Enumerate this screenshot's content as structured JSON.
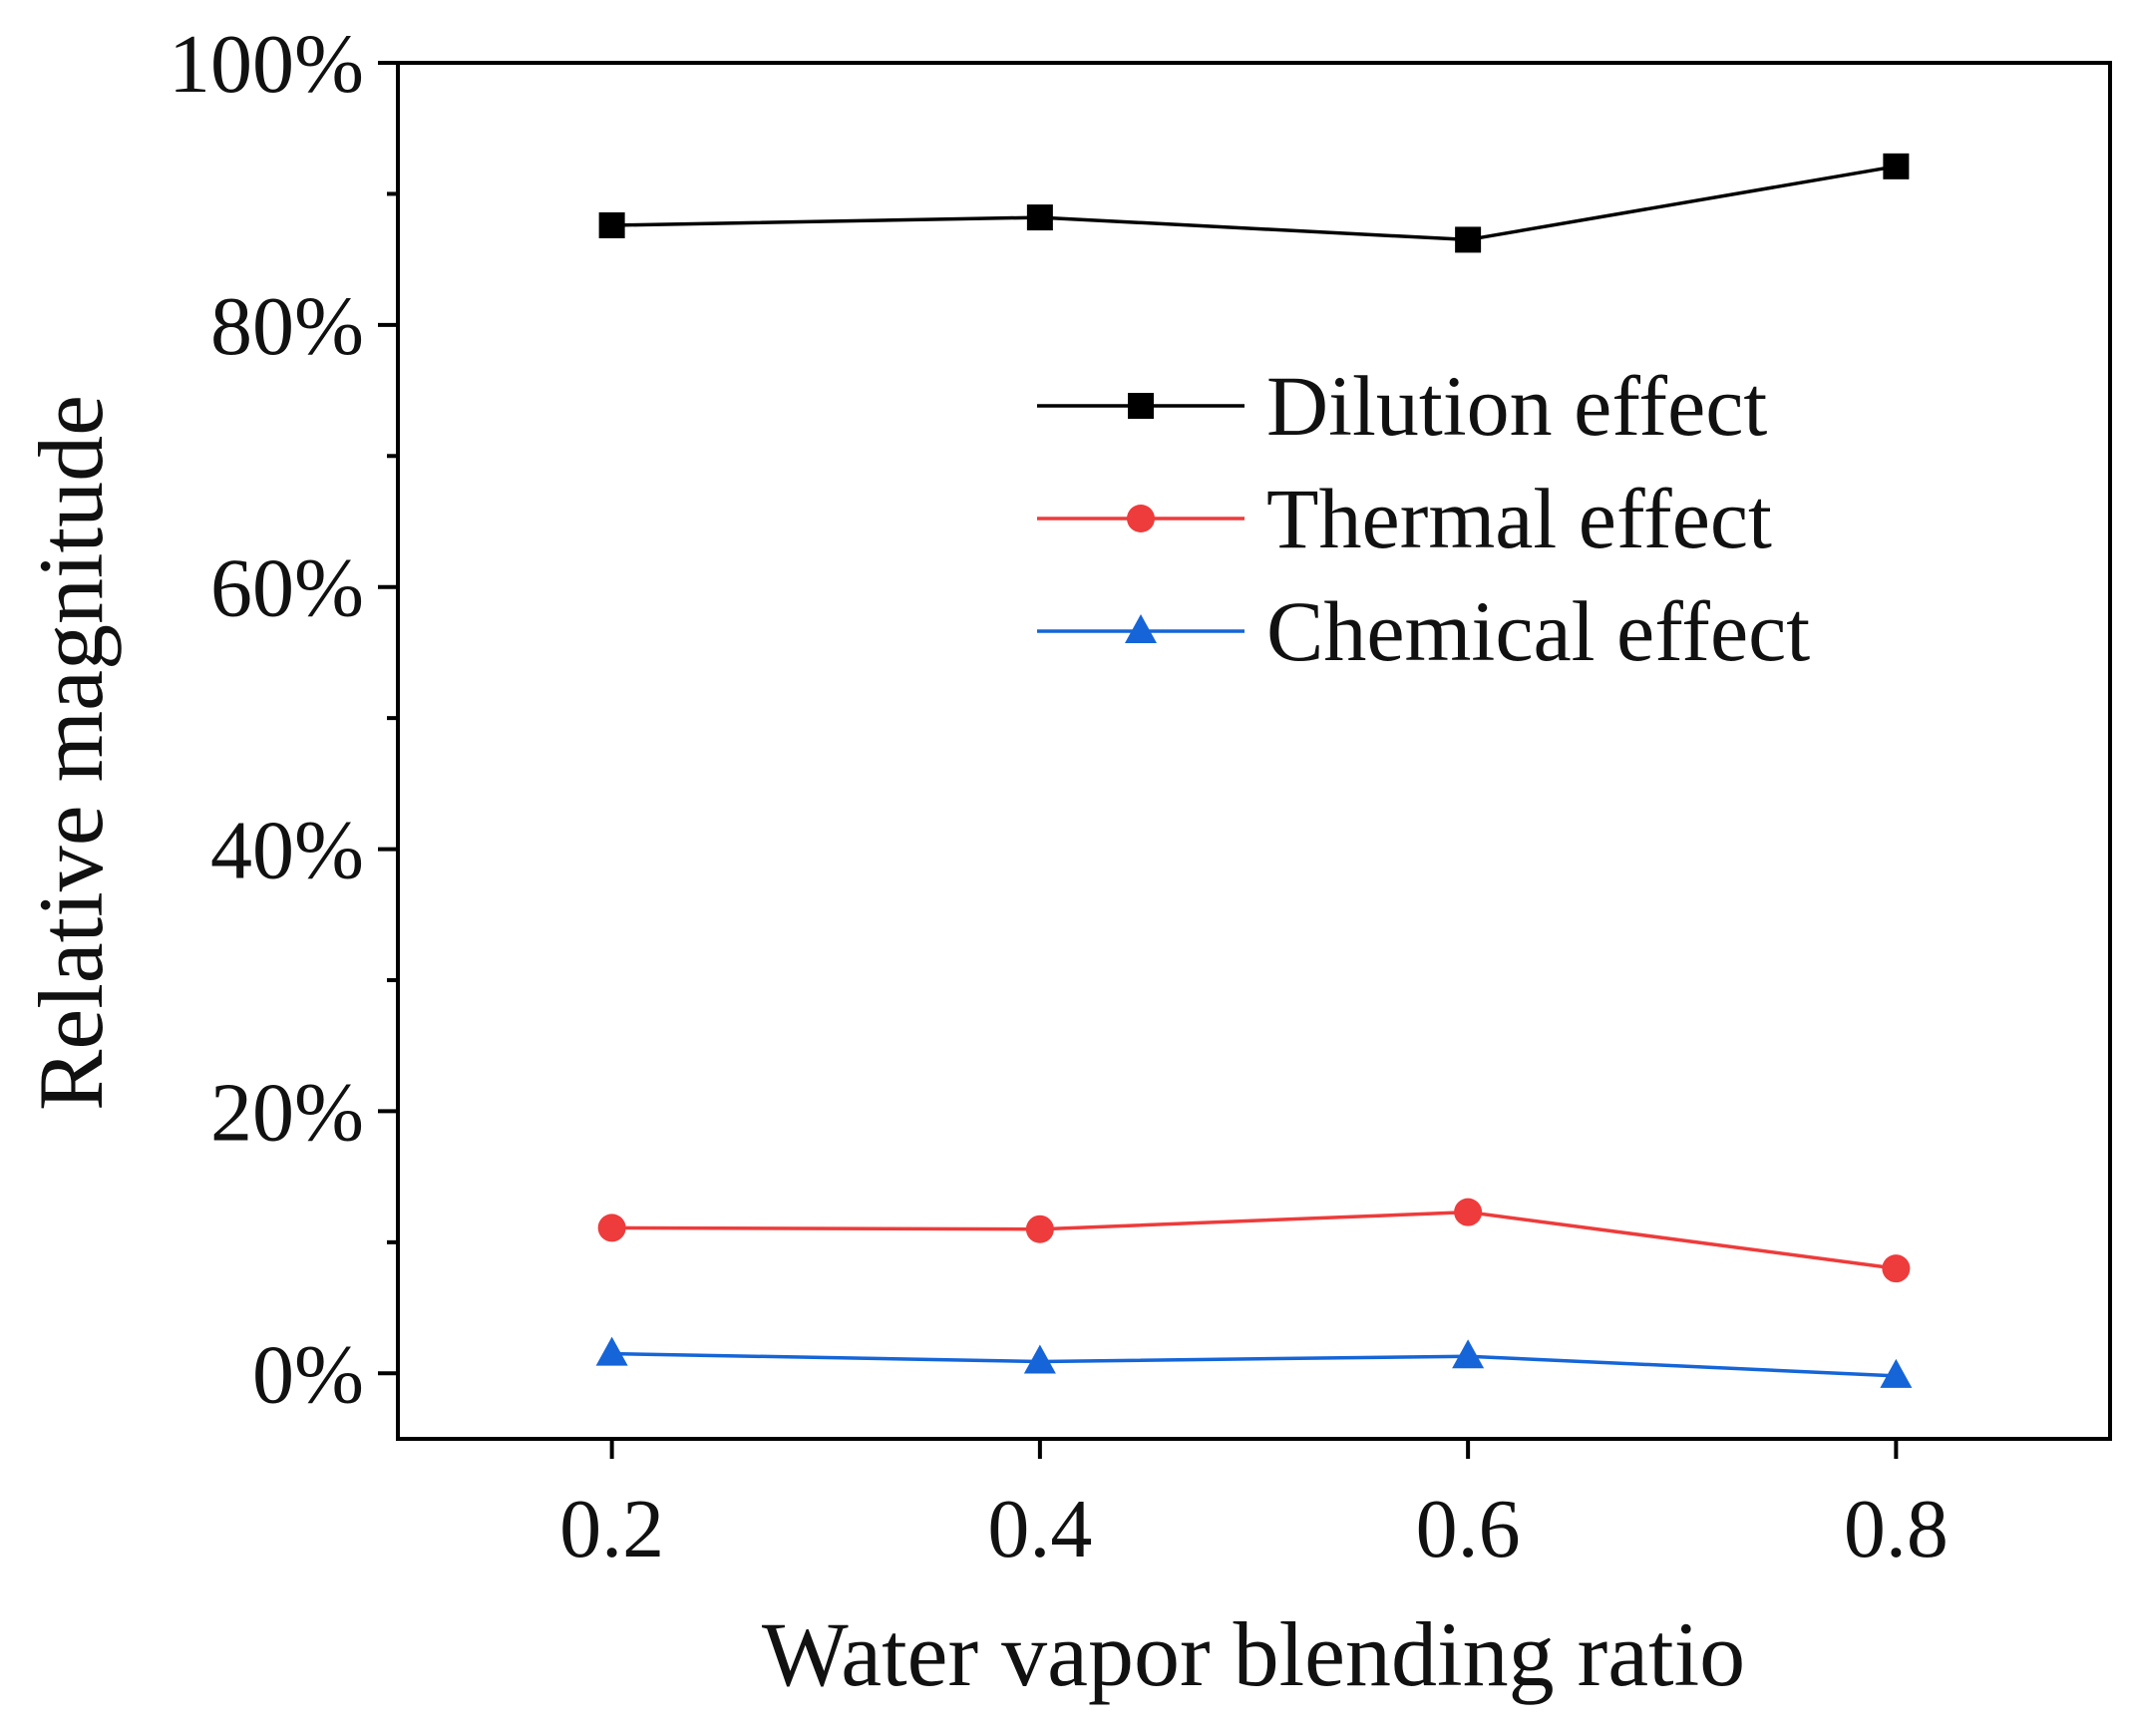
{
  "chart_data": {
    "type": "line",
    "title": "",
    "xlabel": "Water vapor blending ratio",
    "ylabel": "Relative magnitude",
    "x": [
      0.2,
      0.4,
      0.6,
      0.8
    ],
    "xlim": [
      0.1,
      0.9
    ],
    "ylim": [
      -5,
      100
    ],
    "x_ticks": [
      0.2,
      0.4,
      0.6,
      0.8
    ],
    "x_tick_labels": [
      "0.2",
      "0.4",
      "0.6",
      "0.8"
    ],
    "y_ticks": [
      0,
      20,
      40,
      60,
      80,
      100
    ],
    "y_tick_labels": [
      "0%",
      "20%",
      "40%",
      "60%",
      "80%",
      "100%"
    ],
    "y_minor_ticks": [
      10,
      30,
      50,
      70,
      90
    ],
    "grid": false,
    "legend_position": "upper-right",
    "series": [
      {
        "name": "Dilution effect",
        "values": [
          87.6,
          88.2,
          86.5,
          92.1
        ],
        "color": "#000000",
        "marker": "square"
      },
      {
        "name": "Thermal effect",
        "values": [
          11.1,
          11.0,
          12.3,
          8.0
        ],
        "color": "#ee3b3b",
        "marker": "circle"
      },
      {
        "name": "Chemical effect",
        "values": [
          1.5,
          0.9,
          1.3,
          -0.2
        ],
        "color": "#1565d8",
        "marker": "triangle"
      }
    ]
  }
}
